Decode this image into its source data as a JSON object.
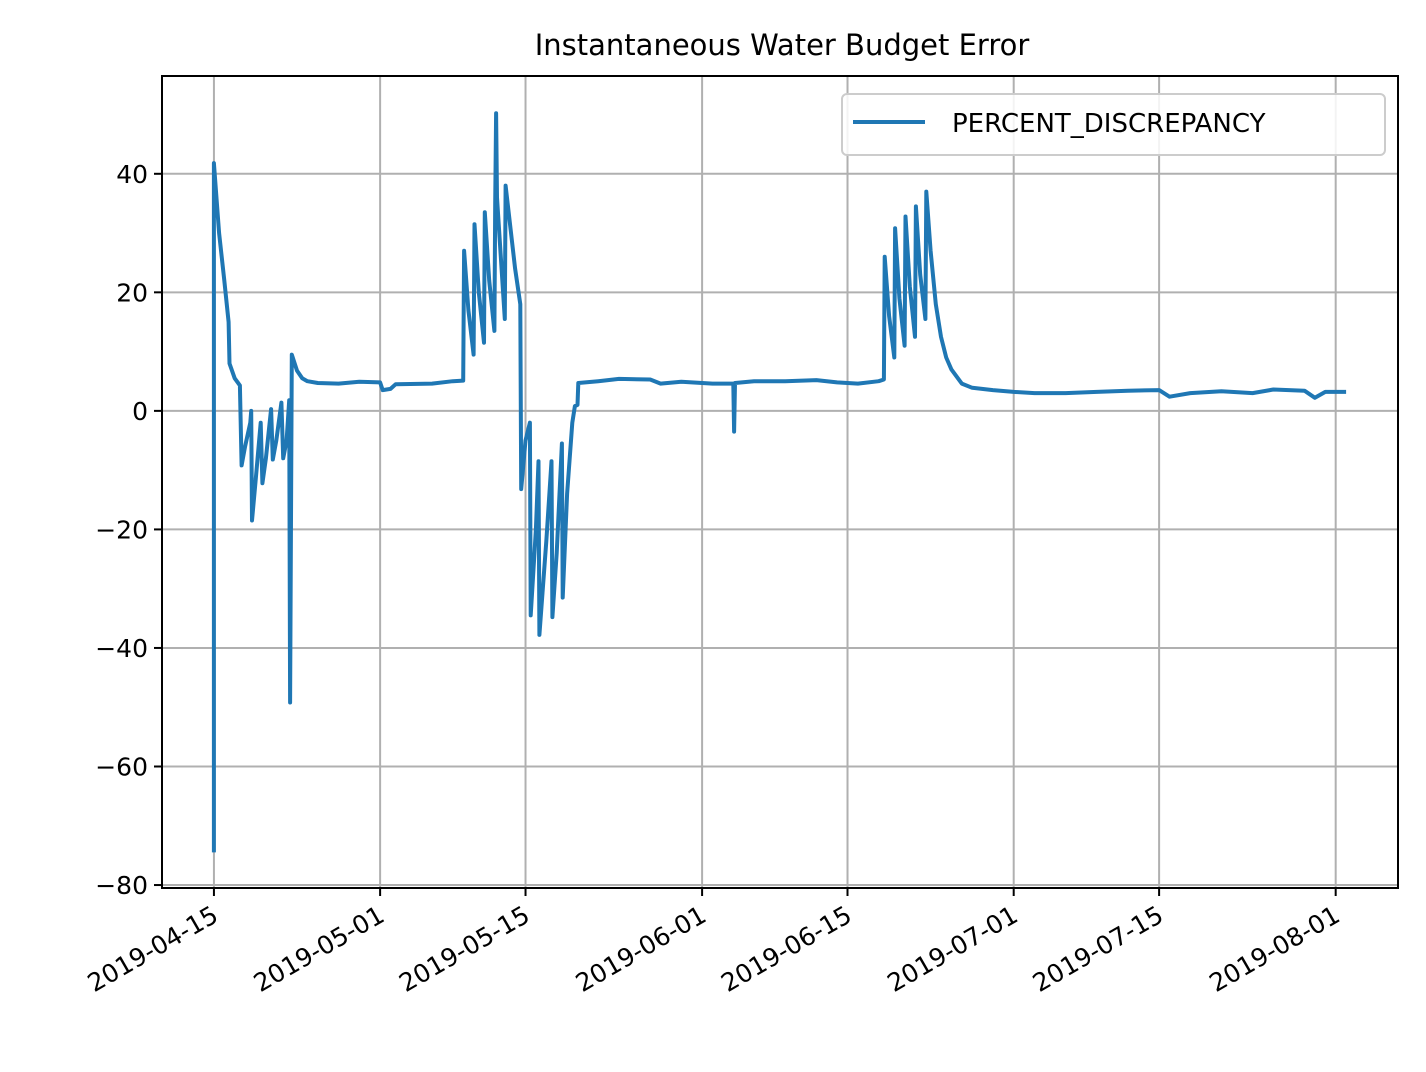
{
  "chart_data": {
    "type": "line",
    "title": "Instantaneous Water Budget Error",
    "xlabel": "",
    "ylabel": "",
    "x_axis_type": "date",
    "xlim": [
      "2019-04-10",
      "2019-08-07"
    ],
    "ylim": [
      -80.5,
      56.5
    ],
    "yticks": [
      40,
      20,
      0,
      -20,
      -40,
      -60,
      -80
    ],
    "ytick_labels": [
      "40",
      "20",
      "0",
      "−20",
      "−40",
      "−60",
      "−80"
    ],
    "xticks": [
      "2019-04-15",
      "2019-05-01",
      "2019-05-15",
      "2019-06-01",
      "2019-06-15",
      "2019-07-01",
      "2019-07-15",
      "2019-08-01"
    ],
    "grid": true,
    "legend_position": "upper right",
    "series": [
      {
        "name": "PERCENT_DISCREPANCY",
        "color": "#1f77b4",
        "points": [
          [
            "2019-04-15",
            -74.5
          ],
          [
            "2019-04-15",
            41.8
          ],
          [
            "2019-04-15 12:00",
            30
          ],
          [
            "2019-04-16",
            22
          ],
          [
            "2019-04-16 10:00",
            15
          ],
          [
            "2019-04-16 12:00",
            8
          ],
          [
            "2019-04-17",
            5.5
          ],
          [
            "2019-04-17 12:00",
            4.3
          ],
          [
            "2019-04-17 16:00",
            -9.2
          ],
          [
            "2019-04-18",
            -6
          ],
          [
            "2019-04-18 12:00",
            -2
          ],
          [
            "2019-04-18 14:00",
            0
          ],
          [
            "2019-04-18 16:00",
            -18.5
          ],
          [
            "2019-04-19",
            -12
          ],
          [
            "2019-04-19 12:00",
            -2
          ],
          [
            "2019-04-19 16:00",
            -12.2
          ],
          [
            "2019-04-20",
            -8
          ],
          [
            "2019-04-20 12:00",
            0.3
          ],
          [
            "2019-04-20 16:00",
            -8.2
          ],
          [
            "2019-04-21",
            -5
          ],
          [
            "2019-04-21 12:00",
            1.4
          ],
          [
            "2019-04-21 16:00",
            -8
          ],
          [
            "2019-04-22",
            -5
          ],
          [
            "2019-04-22 06:00",
            1.8
          ],
          [
            "2019-04-22 08:00",
            -49.2
          ],
          [
            "2019-04-22 12:00",
            9.5
          ],
          [
            "2019-04-23",
            6.8
          ],
          [
            "2019-04-23 12:00",
            5.5
          ],
          [
            "2019-04-24",
            5.0
          ],
          [
            "2019-04-25",
            4.7
          ],
          [
            "2019-04-27",
            4.6
          ],
          [
            "2019-04-29",
            4.9
          ],
          [
            "2019-05-01",
            4.8
          ],
          [
            "2019-05-01 06:00",
            3.5
          ],
          [
            "2019-05-02",
            3.7
          ],
          [
            "2019-05-02 12:00",
            4.5
          ],
          [
            "2019-05-06",
            4.6
          ],
          [
            "2019-05-08",
            5.0
          ],
          [
            "2019-05-09",
            5.1
          ],
          [
            "2019-05-09 02:00",
            27
          ],
          [
            "2019-05-09 12:00",
            17
          ],
          [
            "2019-05-10",
            9.5
          ],
          [
            "2019-05-10 02:00",
            31.5
          ],
          [
            "2019-05-10 12:00",
            20
          ],
          [
            "2019-05-11",
            11.5
          ],
          [
            "2019-05-11 02:00",
            33.5
          ],
          [
            "2019-05-11 12:00",
            22
          ],
          [
            "2019-05-12",
            13.5
          ],
          [
            "2019-05-12 02:00",
            35
          ],
          [
            "2019-05-12 04:00",
            50.2
          ],
          [
            "2019-05-12 06:00",
            36
          ],
          [
            "2019-05-13",
            15.5
          ],
          [
            "2019-05-13 02:00",
            38
          ],
          [
            "2019-05-14",
            24
          ],
          [
            "2019-05-14 12:00",
            18
          ],
          [
            "2019-05-14 14:00",
            -13.2
          ],
          [
            "2019-05-15",
            -5
          ],
          [
            "2019-05-15 10:00",
            -2
          ],
          [
            "2019-05-15 12:00",
            -34.5
          ],
          [
            "2019-05-16",
            -20
          ],
          [
            "2019-05-16 06:00",
            -8.5
          ],
          [
            "2019-05-16 08:00",
            -37.8
          ],
          [
            "2019-05-17",
            -22
          ],
          [
            "2019-05-17 12:00",
            -8.5
          ],
          [
            "2019-05-17 14:00",
            -34.8
          ],
          [
            "2019-05-18",
            -24
          ],
          [
            "2019-05-18 12:00",
            -5.5
          ],
          [
            "2019-05-18 14:00",
            -31.5
          ],
          [
            "2019-05-19",
            -14
          ],
          [
            "2019-05-19 12:00",
            -2
          ],
          [
            "2019-05-19 18:00",
            0.8
          ],
          [
            "2019-05-20",
            1
          ],
          [
            "2019-05-20 02:00",
            4.7
          ],
          [
            "2019-05-22",
            5.0
          ],
          [
            "2019-05-24",
            5.4
          ],
          [
            "2019-05-27",
            5.3
          ],
          [
            "2019-05-28",
            4.6
          ],
          [
            "2019-05-30",
            4.9
          ],
          [
            "2019-06-02",
            4.6
          ],
          [
            "2019-06-04",
            4.6
          ],
          [
            "2019-06-04 02:00",
            -3.5
          ],
          [
            "2019-06-04 04:00",
            4.7
          ],
          [
            "2019-06-06",
            5.0
          ],
          [
            "2019-06-09",
            5.0
          ],
          [
            "2019-06-12",
            5.2
          ],
          [
            "2019-06-14",
            4.8
          ],
          [
            "2019-06-16",
            4.6
          ],
          [
            "2019-06-18",
            5.0
          ],
          [
            "2019-06-18 12:00",
            5.3
          ],
          [
            "2019-06-18 14:00",
            26
          ],
          [
            "2019-06-19",
            16
          ],
          [
            "2019-06-19 12:00",
            9
          ],
          [
            "2019-06-19 14:00",
            30.8
          ],
          [
            "2019-06-20",
            19
          ],
          [
            "2019-06-20 12:00",
            11
          ],
          [
            "2019-06-20 14:00",
            32.8
          ],
          [
            "2019-06-21",
            21
          ],
          [
            "2019-06-21 12:00",
            12.5
          ],
          [
            "2019-06-21 14:00",
            34.5
          ],
          [
            "2019-06-22",
            23
          ],
          [
            "2019-06-22 12:00",
            15.5
          ],
          [
            "2019-06-22 14:00",
            37
          ],
          [
            "2019-06-23",
            27
          ],
          [
            "2019-06-23 12:00",
            18
          ],
          [
            "2019-06-24",
            12.5
          ],
          [
            "2019-06-24 12:00",
            9
          ],
          [
            "2019-06-25",
            7
          ],
          [
            "2019-06-26",
            4.6
          ],
          [
            "2019-06-27",
            3.9
          ],
          [
            "2019-06-29",
            3.5
          ],
          [
            "2019-07-01",
            3.2
          ],
          [
            "2019-07-03",
            3.0
          ],
          [
            "2019-07-06",
            3.0
          ],
          [
            "2019-07-09",
            3.2
          ],
          [
            "2019-07-12",
            3.4
          ],
          [
            "2019-07-15",
            3.5
          ],
          [
            "2019-07-16",
            2.4
          ],
          [
            "2019-07-18",
            3.0
          ],
          [
            "2019-07-21",
            3.3
          ],
          [
            "2019-07-24",
            3.0
          ],
          [
            "2019-07-26",
            3.6
          ],
          [
            "2019-07-29",
            3.4
          ],
          [
            "2019-07-30",
            2.2
          ],
          [
            "2019-07-31",
            3.2
          ],
          [
            "2019-08-02",
            3.2
          ]
        ]
      }
    ]
  }
}
